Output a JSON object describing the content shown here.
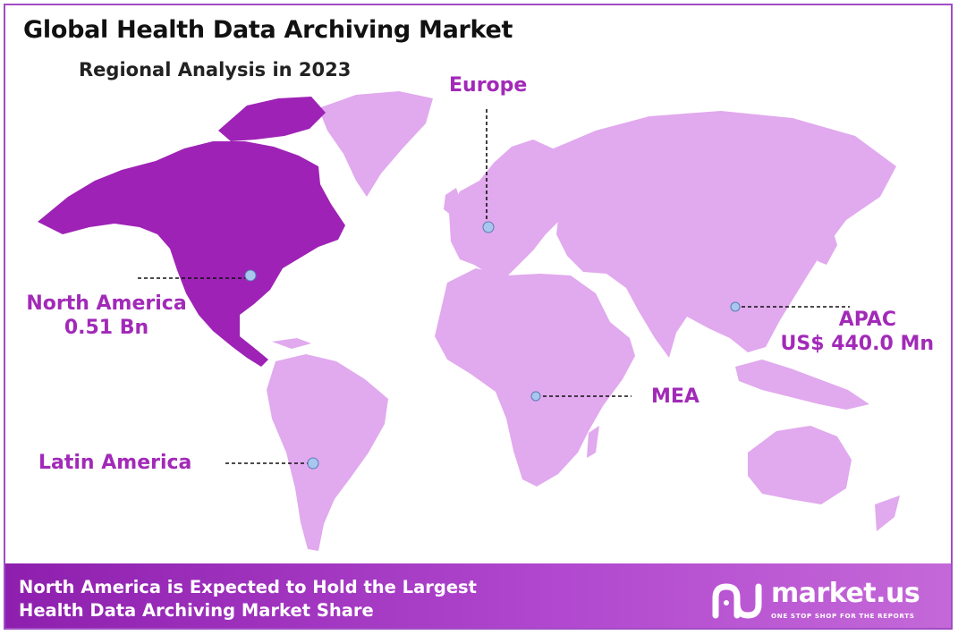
{
  "title": "Global Health Data Archiving Market",
  "subtitle": "Regional Analysis in 2023",
  "colors": {
    "highlight_region": "#9e22b6",
    "other_regions": "#e1a9ee",
    "label": "#a22ab8",
    "footer_bg": "#a33ec4",
    "marker": "#a9c6ee"
  },
  "regions": {
    "north_america": {
      "name": "North America",
      "value": "0.51 Bn",
      "highlighted": true
    },
    "europe": {
      "name": "Europe"
    },
    "apac": {
      "name": "APAC",
      "value": "US$ 440.0 Mn"
    },
    "mea": {
      "name": "MEA"
    },
    "latin_america": {
      "name": "Latin America"
    }
  },
  "footer": {
    "line1": "North America is Expected to Hold the Largest",
    "line2": "Health Data Archiving Market Share"
  },
  "brand": {
    "name": "market.us",
    "tagline": "ONE STOP SHOP FOR THE REPORTS",
    "logo_icon": "market-us-logo"
  }
}
